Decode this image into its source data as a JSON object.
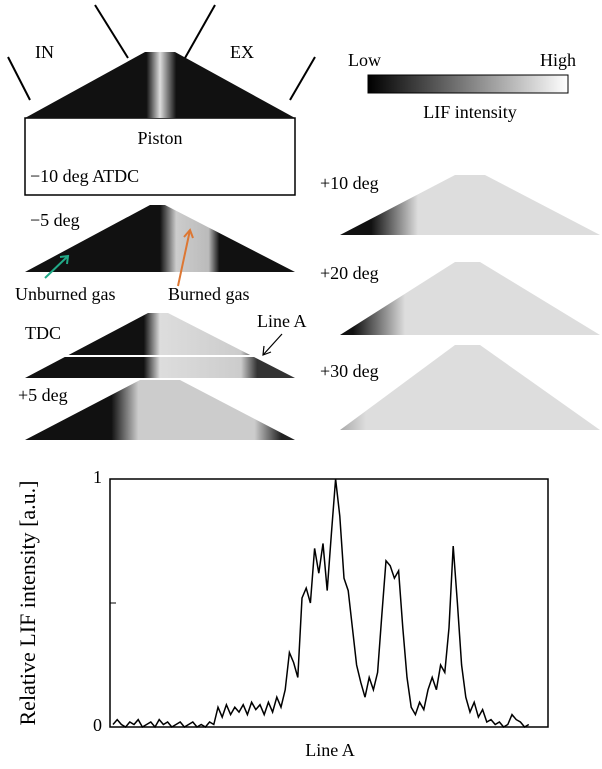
{
  "diagram": {
    "intake": "IN",
    "exhaust": "EX",
    "piston": "Piston",
    "frames": [
      "−10 deg ATDC",
      "−5 deg",
      "TDC",
      "+5 deg",
      "+10 deg",
      "+20 deg",
      "+30 deg"
    ],
    "unburned": "Unburned gas",
    "burned": "Burned gas",
    "line": "Line A"
  },
  "colorbar": {
    "low": "Low",
    "high": "High",
    "label": "LIF intensity"
  },
  "chart_data": {
    "type": "line",
    "ylabel": "Relative LIF intensity [a.u.]",
    "xlabel": "Line A",
    "ylim": [
      0,
      1
    ],
    "yticks": [
      0,
      1
    ],
    "minor_yticks": [
      0.5
    ],
    "color": "#000000",
    "values": [
      0.01,
      0.03,
      0.01,
      0.0,
      0.02,
      0.01,
      0.03,
      0.0,
      0.01,
      0.02,
      0.0,
      0.03,
      0.01,
      0.02,
      0.0,
      0.01,
      0.02,
      0.0,
      0.01,
      0.02,
      0.0,
      0.01,
      0.0,
      0.02,
      0.01,
      0.08,
      0.04,
      0.09,
      0.05,
      0.08,
      0.06,
      0.09,
      0.05,
      0.1,
      0.07,
      0.09,
      0.05,
      0.1,
      0.06,
      0.12,
      0.08,
      0.15,
      0.3,
      0.26,
      0.2,
      0.52,
      0.56,
      0.5,
      0.72,
      0.62,
      0.74,
      0.55,
      0.78,
      1.0,
      0.85,
      0.6,
      0.55,
      0.4,
      0.25,
      0.18,
      0.12,
      0.2,
      0.15,
      0.22,
      0.45,
      0.67,
      0.65,
      0.6,
      0.63,
      0.4,
      0.2,
      0.08,
      0.05,
      0.1,
      0.07,
      0.15,
      0.2,
      0.15,
      0.25,
      0.22,
      0.4,
      0.73,
      0.5,
      0.25,
      0.12,
      0.06,
      0.1,
      0.04,
      0.07,
      0.02,
      0.03,
      0.01,
      0.02,
      0.0,
      0.01,
      0.05,
      0.03,
      0.02,
      0.0,
      0.01
    ]
  }
}
